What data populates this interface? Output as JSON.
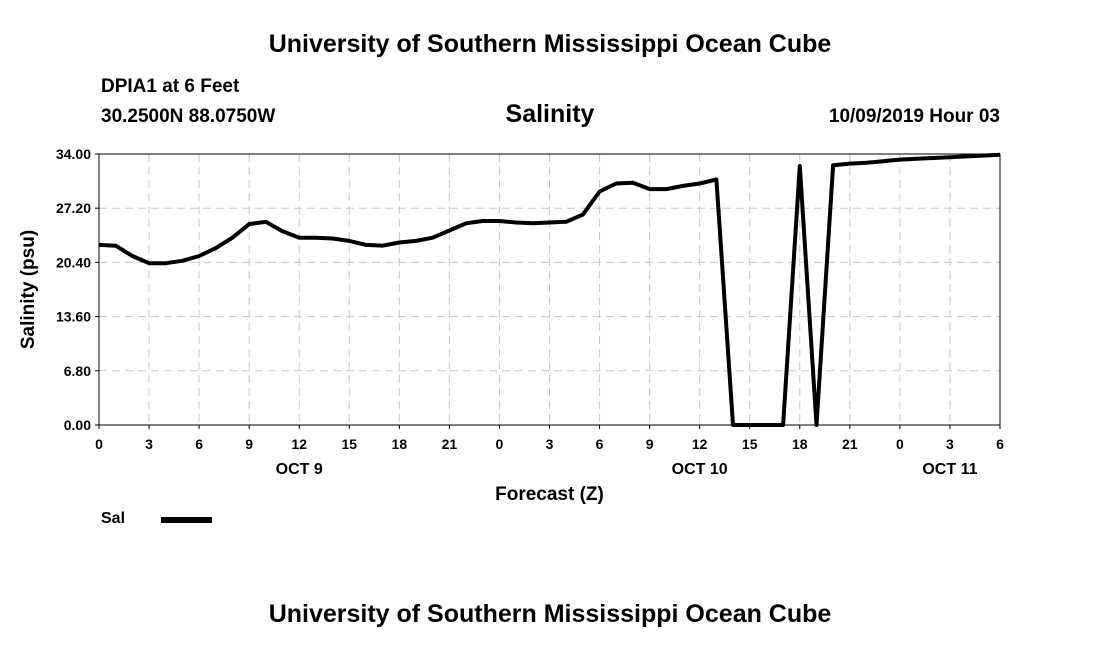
{
  "header": {
    "title": "University of Southern Mississippi Ocean Cube",
    "station": "DPIA1 at 6 Feet",
    "coords": "30.2500N 88.0750W",
    "parameter": "Salinity",
    "timestamp": "10/09/2019 Hour 03"
  },
  "footer": {
    "title": "University of Southern Mississippi Ocean Cube"
  },
  "legend": {
    "label": "Sal"
  },
  "chart_data": {
    "type": "line",
    "xlabel": "Forecast (Z)",
    "ylabel": "Salinity (psu)",
    "ylim": [
      0,
      34
    ],
    "xlim": [
      0,
      54
    ],
    "yticks": [
      "0.00",
      "6.80",
      "13.60",
      "20.40",
      "27.20",
      "34.00"
    ],
    "xticks": [
      "0",
      "3",
      "6",
      "9",
      "12",
      "15",
      "18",
      "21",
      "0",
      "3",
      "6",
      "9",
      "12",
      "15",
      "18",
      "21",
      "0",
      "3",
      "6"
    ],
    "date_labels": [
      {
        "label": "OCT 9",
        "at_tick": 12
      },
      {
        "label": "OCT 10",
        "at_tick": 36
      },
      {
        "label": "OCT 11",
        "at_tick": 51
      }
    ],
    "grid": true,
    "line_color": "#000000",
    "series": [
      {
        "name": "Sal",
        "x": [
          0,
          1,
          2,
          3,
          4,
          5,
          6,
          7,
          8,
          9,
          10,
          11,
          12,
          13,
          14,
          15,
          16,
          17,
          18,
          19,
          20,
          21,
          22,
          23,
          24,
          25,
          26,
          27,
          28,
          29,
          30,
          31,
          32,
          33,
          34,
          35,
          36,
          37,
          38,
          39,
          40,
          41,
          42,
          43,
          44,
          45,
          46,
          47,
          48,
          49,
          50,
          51,
          52,
          53,
          54
        ],
        "values": [
          22.6,
          22.5,
          21.2,
          20.3,
          20.3,
          20.6,
          21.2,
          22.2,
          23.5,
          25.2,
          25.5,
          24.3,
          23.5,
          23.5,
          23.4,
          23.1,
          22.6,
          22.5,
          22.9,
          23.1,
          23.5,
          24.4,
          25.3,
          25.6,
          25.6,
          25.4,
          25.3,
          25.4,
          25.5,
          26.4,
          29.3,
          30.3,
          30.4,
          29.6,
          29.6,
          30.0,
          30.3,
          30.8,
          0.0,
          0.0,
          0.0,
          0.0,
          32.5,
          0.0,
          32.6,
          32.8,
          32.9,
          33.1,
          33.3,
          33.4,
          33.5,
          33.6,
          33.7,
          33.8,
          33.9
        ]
      }
    ]
  }
}
